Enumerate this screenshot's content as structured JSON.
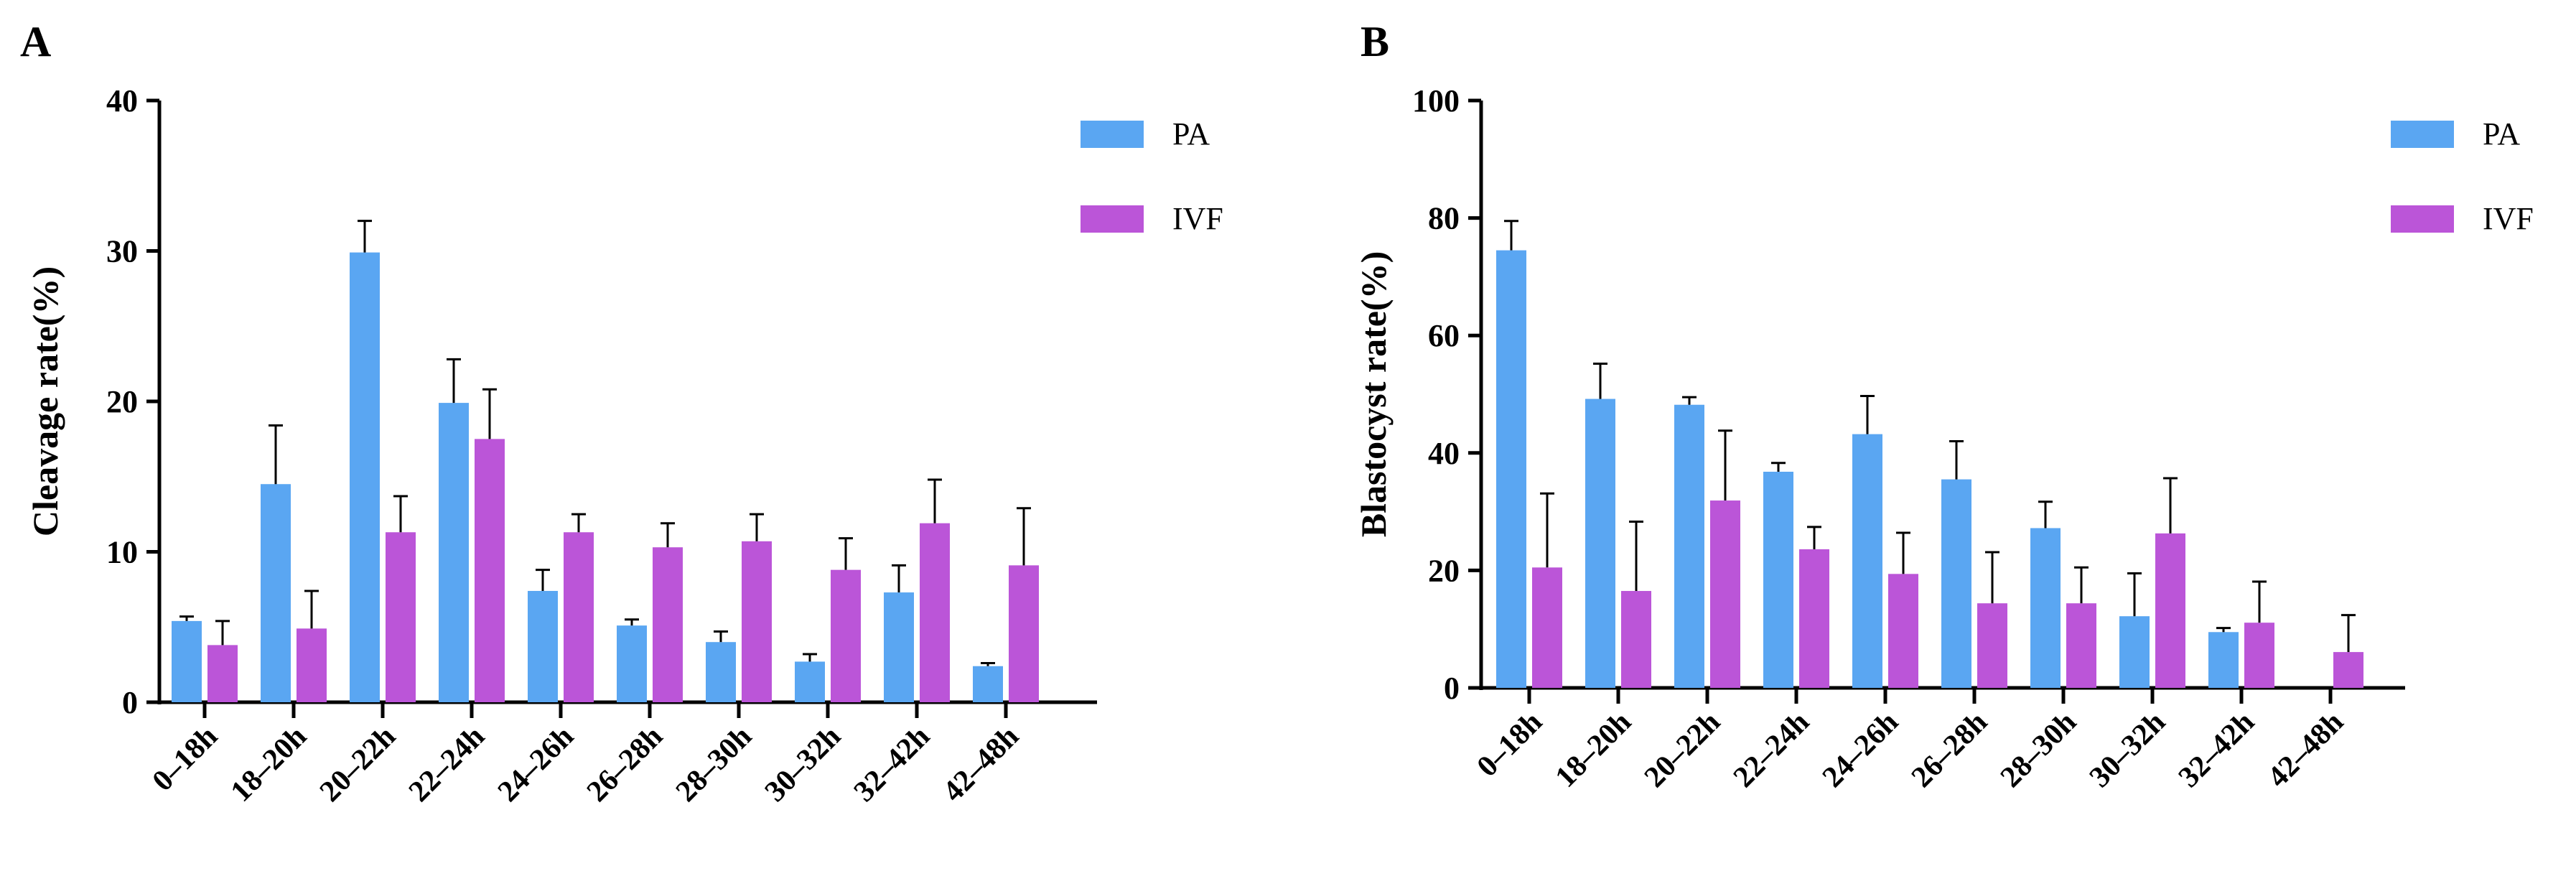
{
  "colors": {
    "PA": "#5aa6f2",
    "IVF": "#bb55d8",
    "axis": "#000000"
  },
  "chart_data": [
    {
      "type": "bar",
      "panel": "A",
      "title": "",
      "xlabel": "",
      "ylabel": "Cleavage rate(%)",
      "ylim": [
        0,
        40
      ],
      "yticks": [
        "0",
        "10",
        "20",
        "30",
        "40"
      ],
      "legend_position": "top-right",
      "categories": [
        "0–18h",
        "18–20h",
        "20–22h",
        "22–24h",
        "24–26h",
        "26–28h",
        "28–30h",
        "30–32h",
        "32–42h",
        "42–48h"
      ],
      "series": [
        {
          "name": "PA",
          "values": [
            5.4,
            14.5,
            29.9,
            19.9,
            7.4,
            5.1,
            4.0,
            2.7,
            7.3,
            2.4
          ],
          "errors": [
            0.3,
            3.9,
            2.1,
            2.9,
            1.4,
            0.4,
            0.7,
            0.5,
            1.8,
            0.2
          ]
        },
        {
          "name": "IVF",
          "values": [
            3.8,
            4.9,
            11.3,
            17.5,
            11.3,
            10.3,
            10.7,
            8.8,
            11.9,
            9.1
          ],
          "errors": [
            1.6,
            2.5,
            2.4,
            3.3,
            1.2,
            1.6,
            1.8,
            2.1,
            2.9,
            3.8
          ]
        }
      ]
    },
    {
      "type": "bar",
      "panel": "B",
      "title": "",
      "xlabel": "",
      "ylabel": "Blastocyst rate(%)",
      "ylim": [
        0,
        100
      ],
      "yticks": [
        "0",
        "20",
        "40",
        "60",
        "80",
        "100"
      ],
      "legend_position": "top-right",
      "categories": [
        "0–18h",
        "18–20h",
        "20–22h",
        "22–24h",
        "24–26h",
        "26–28h",
        "28–30h",
        "30–32h",
        "32–42h",
        "42–48h"
      ],
      "series": [
        {
          "name": "PA",
          "values": [
            74.5,
            49.2,
            48.2,
            36.8,
            43.2,
            35.5,
            27.2,
            12.2,
            9.5,
            0
          ],
          "errors": [
            5.0,
            6.0,
            1.3,
            1.5,
            6.5,
            6.5,
            4.5,
            7.3,
            0.7,
            0
          ]
        },
        {
          "name": "IVF",
          "values": [
            20.5,
            16.5,
            31.9,
            23.6,
            19.4,
            14.4,
            14.4,
            26.3,
            11.1,
            6.1
          ],
          "errors": [
            12.6,
            11.8,
            11.9,
            3.8,
            7.0,
            8.7,
            6.1,
            9.4,
            7.0,
            6.3
          ]
        }
      ]
    }
  ]
}
